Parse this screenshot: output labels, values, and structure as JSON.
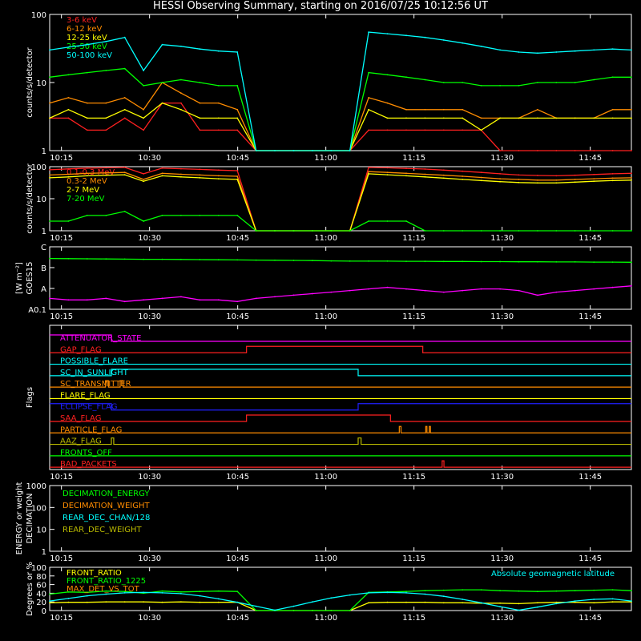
{
  "title": "HESSI Observing Summary, starting on 2016/07/25 10:12:56 UT",
  "time_ticks": [
    "10:15",
    "10:30",
    "10:45",
    "11:00",
    "11:15",
    "11:30",
    "11:45"
  ],
  "chart_data": [
    {
      "id": "lo",
      "type": "line",
      "ylabel": "counts/s/detector",
      "yscale": "log",
      "ylim": [
        1,
        100
      ],
      "yticks": [
        "1",
        "10",
        "100"
      ],
      "series": [
        {
          "name": "3-6 keV",
          "color": "#ff2020",
          "values": [
            3,
            3,
            2,
            2,
            3,
            2,
            5,
            5,
            2,
            2,
            2,
            1,
            1,
            1,
            1,
            1,
            1,
            2,
            2,
            2,
            2,
            2,
            2,
            2,
            1,
            1,
            1,
            1,
            1,
            1,
            1,
            1
          ]
        },
        {
          "name": "6-12 keV",
          "color": "#ff8c00",
          "values": [
            5,
            6,
            5,
            5,
            6,
            4,
            10,
            7,
            5,
            5,
            4,
            1,
            1,
            1,
            1,
            1,
            1,
            6,
            5,
            4,
            4,
            4,
            4,
            3,
            3,
            3,
            4,
            3,
            3,
            3,
            4,
            4
          ]
        },
        {
          "name": "12-25 keV",
          "color": "#ffff00",
          "values": [
            3,
            4,
            3,
            3,
            4,
            3,
            5,
            4,
            3,
            3,
            3,
            1,
            1,
            1,
            1,
            1,
            1,
            4,
            3,
            3,
            3,
            3,
            3,
            2,
            3,
            3,
            3,
            3,
            3,
            3,
            3,
            3
          ]
        },
        {
          "name": "25-50 keV",
          "color": "#00ff00",
          "values": [
            12,
            13,
            14,
            15,
            16,
            9,
            10,
            11,
            10,
            9,
            9,
            1,
            1,
            1,
            1,
            1,
            1,
            14,
            13,
            12,
            11,
            10,
            10,
            9,
            9,
            9,
            10,
            10,
            10,
            11,
            12,
            12
          ]
        },
        {
          "name": "50-100 keV",
          "color": "#00ffff",
          "values": [
            30,
            33,
            36,
            40,
            46,
            15,
            36,
            34,
            31,
            29,
            28,
            1,
            1,
            1,
            1,
            1,
            1,
            55,
            52,
            49,
            46,
            42,
            38,
            34,
            30,
            28,
            27,
            28,
            29,
            30,
            31,
            30
          ]
        }
      ]
    },
    {
      "id": "hi",
      "type": "line",
      "ylabel": "counts/s/detector",
      "yscale": "log",
      "ylim": [
        1,
        100
      ],
      "yticks": [
        "1",
        "10",
        "100"
      ],
      "series": [
        {
          "name": "0.1-0.3 MeV",
          "color": "#ff2020",
          "values": [
            80,
            85,
            90,
            92,
            95,
            60,
            90,
            86,
            82,
            78,
            75,
            1,
            1,
            1,
            1,
            1,
            1,
            95,
            92,
            88,
            84,
            78,
            72,
            66,
            60,
            55,
            53,
            52,
            54,
            57,
            60,
            62
          ]
        },
        {
          "name": "0.3-2 MeV",
          "color": "#ff8c00",
          "values": [
            55,
            58,
            62,
            64,
            66,
            40,
            62,
            58,
            55,
            52,
            50,
            1,
            1,
            1,
            1,
            1,
            1,
            70,
            66,
            62,
            58,
            54,
            50,
            46,
            42,
            40,
            38,
            38,
            40,
            42,
            44,
            45
          ]
        },
        {
          "name": "2-7 MeV",
          "color": "#ffff00",
          "values": [
            45,
            48,
            52,
            54,
            56,
            35,
            52,
            48,
            45,
            42,
            40,
            1,
            1,
            1,
            1,
            1,
            1,
            60,
            56,
            52,
            48,
            44,
            40,
            37,
            34,
            32,
            31,
            31,
            33,
            35,
            37,
            38
          ]
        },
        {
          "name": "7-20 MeV",
          "color": "#00ff00",
          "values": [
            2,
            2,
            3,
            3,
            4,
            2,
            3,
            3,
            3,
            3,
            3,
            1,
            1,
            1,
            1,
            1,
            1,
            2,
            2,
            2,
            1,
            1,
            1,
            1,
            1,
            1,
            1,
            1,
            1,
            1,
            1,
            1
          ]
        }
      ]
    },
    {
      "id": "goes",
      "type": "line",
      "ylabel": "GOES15",
      "yunit": "[W m⁻²]",
      "ylim": [
        0,
        4
      ],
      "yticks": [
        "A0.1",
        "A",
        "B",
        "C"
      ],
      "series": [
        {
          "name": "GOES high",
          "color": "#00ff00",
          "values": [
            3.25,
            3.24,
            3.23,
            3.22,
            3.21,
            3.2,
            3.2,
            3.19,
            3.18,
            3.17,
            3.16,
            3.15,
            3.14,
            3.13,
            3.12,
            3.1,
            3.08,
            3.08,
            3.08,
            3.07,
            3.07,
            3.06,
            3.06,
            3.05,
            3.05,
            3.04,
            3.04,
            3.03,
            3.03,
            3.02,
            3.02,
            3.01
          ]
        },
        {
          "name": "GOES low",
          "color": "#ff00ff",
          "values": [
            0.7,
            0.6,
            0.6,
            0.7,
            0.5,
            0.6,
            0.7,
            0.8,
            0.6,
            0.6,
            0.5,
            0.7,
            0.8,
            0.9,
            1.0,
            1.1,
            1.2,
            1.3,
            1.4,
            1.3,
            1.2,
            1.1,
            1.2,
            1.3,
            1.3,
            1.2,
            0.9,
            1.1,
            1.2,
            1.3,
            1.4,
            1.5
          ]
        }
      ]
    },
    {
      "id": "flags",
      "type": "line",
      "ylabel": "Flags",
      "series": [
        {
          "name": "ATTENUATOR_STATE",
          "color": "#ff00ff",
          "steps": [
            [
              0,
              1
            ],
            [
              10.5,
              0
            ]
          ]
        },
        {
          "name": "GAP_FLAG",
          "color": "#ff2020",
          "steps": [
            [
              0,
              0
            ],
            [
              33.5,
              1
            ],
            [
              63.5,
              0
            ]
          ]
        },
        {
          "name": "POSSIBLE_FLARE",
          "color": "#00ffff",
          "steps": [
            [
              0,
              0
            ]
          ]
        },
        {
          "name": "SC_IN_SUNLIGHT",
          "color": "#00ffff",
          "steps": [
            [
              0,
              0
            ],
            [
              10.5,
              1
            ],
            [
              52.5,
              0
            ]
          ]
        },
        {
          "name": "SC_TRANSMITTER",
          "color": "#ff8c00",
          "steps": [
            [
              0,
              0
            ],
            [
              9.5,
              1
            ],
            [
              10,
              0
            ],
            [
              12,
              1
            ],
            [
              12.5,
              0
            ]
          ]
        },
        {
          "name": "FLARE_FLAG",
          "color": "#ffff00",
          "steps": [
            [
              0,
              0
            ]
          ]
        },
        {
          "name": "ECLIPSE_FLAG",
          "color": "#2020ff",
          "steps": [
            [
              0,
              1
            ],
            [
              10.5,
              0
            ],
            [
              52.5,
              1
            ]
          ]
        },
        {
          "name": "SAA_FLAG",
          "color": "#ff2020",
          "steps": [
            [
              0,
              0
            ],
            [
              33.5,
              1
            ],
            [
              58,
              0
            ]
          ]
        },
        {
          "name": "PARTICLE_FLAG",
          "color": "#ff8c00",
          "steps": [
            [
              0,
              0
            ],
            [
              59.5,
              1
            ],
            [
              59.8,
              0
            ],
            [
              64,
              1
            ],
            [
              64.2,
              0
            ],
            [
              64.6,
              1
            ],
            [
              64.8,
              0
            ]
          ]
        },
        {
          "name": "AAZ_FLAG",
          "color": "#b8b800",
          "steps": [
            [
              0,
              0
            ],
            [
              10.5,
              1
            ],
            [
              10.9,
              0
            ],
            [
              52.5,
              1
            ],
            [
              53,
              0
            ]
          ]
        },
        {
          "name": "FRONTS_OFF",
          "color": "#00ff00",
          "steps": [
            [
              0,
              0
            ]
          ]
        },
        {
          "name": "BAD_PACKETS",
          "color": "#ff2020",
          "steps": [
            [
              0,
              0
            ],
            [
              66.8,
              1
            ],
            [
              67.1,
              0
            ]
          ]
        }
      ]
    },
    {
      "id": "dec",
      "type": "line",
      "ylabel": "DECIMATION",
      "ylabel2": "ENERGY or weight",
      "yscale": "log",
      "ylim": [
        1,
        1000
      ],
      "yticks": [
        "1",
        "10",
        "100",
        "1000"
      ],
      "series": [
        {
          "name": "DECIMATION_ENERGY",
          "color": "#00ff00",
          "values": []
        },
        {
          "name": "DECIMATION_WEIGHT",
          "color": "#ff8c00",
          "values": []
        },
        {
          "name": "REAR_DEC_CHAN/128",
          "color": "#00ffff",
          "values": []
        },
        {
          "name": "REAR_DEC_WEIGHT",
          "color": "#b8b800",
          "values": []
        }
      ]
    },
    {
      "id": "ratio",
      "type": "line",
      "ylabel": "Degrees or %",
      "ylim": [
        0,
        100
      ],
      "yticks": [
        "0",
        "20",
        "40",
        "60",
        "80",
        "100"
      ],
      "annotation": "Absolute geomagnetic latitude",
      "annotation_color": "#00ffff",
      "series": [
        {
          "name": "FRONT_RATIO",
          "color": "#ffff00",
          "values": [
            18,
            19,
            19,
            20,
            20,
            20,
            19,
            20,
            19,
            19,
            19,
            0,
            0,
            0,
            0,
            0,
            0,
            18,
            19,
            19,
            19,
            18,
            18,
            17,
            17,
            16,
            18,
            19,
            19,
            18,
            20,
            20
          ]
        },
        {
          "name": "FRONT_RATIO_1225",
          "color": "#00ff00",
          "values": [
            38,
            43,
            42,
            45,
            44,
            40,
            45,
            43,
            44,
            45,
            44,
            0,
            0,
            0,
            0,
            0,
            0,
            42,
            43,
            44,
            46,
            47,
            48,
            48,
            46,
            45,
            44,
            45,
            46,
            47,
            48,
            46
          ]
        },
        {
          "name": "MAX_DET_VS_TOT",
          "color": "#ff8c00",
          "values": []
        },
        {
          "name": "Absolute geomagnetic latitude",
          "color": "#00ffff",
          "values": [
            22,
            28,
            34,
            38,
            41,
            42,
            41,
            39,
            34,
            27,
            19,
            10,
            1,
            10,
            20,
            29,
            36,
            41,
            42,
            41,
            38,
            33,
            26,
            18,
            9,
            1,
            8,
            16,
            22,
            26,
            27,
            22
          ]
        }
      ]
    }
  ]
}
